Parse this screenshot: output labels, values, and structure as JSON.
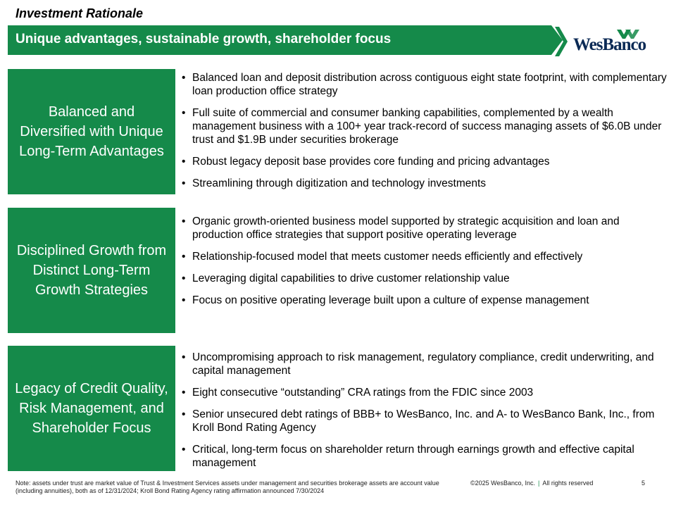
{
  "header": {
    "section": "Investment Rationale",
    "title": "Unique advantages, sustainable growth, shareholder focus",
    "logo_text": "WesBanco"
  },
  "colors": {
    "brand_green": "#158a4a",
    "logo_navy": "#0b2a55"
  },
  "pillars": [
    {
      "label": "Balanced and Diversified with Unique Long-Term Advantages",
      "bullets": [
        "Balanced loan and deposit distribution across contiguous eight state footprint, with complementary loan production office strategy",
        "Full suite of commercial and consumer banking capabilities, complemented by a wealth management business with a 100+ year track-record of success managing assets of $6.0B under trust and $1.9B under securities brokerage",
        "Robust legacy deposit base provides core funding and pricing advantages",
        "Streamlining through digitization and technology investments"
      ]
    },
    {
      "label": "Disciplined Growth from Distinct Long-Term Growth Strategies",
      "bullets": [
        "Organic growth-oriented business model supported by strategic acquisition and loan and production office strategies that support positive operating leverage",
        "Relationship-focused model that meets customer needs efficiently and effectively",
        "Leveraging digital capabilities to drive customer relationship value",
        "Focus on positive operating leverage built upon a culture of expense management"
      ]
    },
    {
      "label": "Legacy of Credit Quality, Risk Management, and Shareholder Focus",
      "bullets": [
        "Uncompromising approach to risk management, regulatory compliance, credit underwriting, and capital management",
        "Eight consecutive “outstanding” CRA ratings from the FDIC since 2003",
        "Senior unsecured debt ratings of BBB+ to WesBanco, Inc. and A- to WesBanco Bank, Inc., from Kroll Bond Rating Agency",
        "Critical, long-term focus on shareholder return through earnings growth and effective capital management"
      ]
    }
  ],
  "footer": {
    "note": "Note: assets under trust are market value of Trust & Investment Services assets under management and securities brokerage assets are account value (including annuities), both as of 12/31/2024; Kroll Bond Rating Agency rating affirmation announced 7/30/2024",
    "copyright": "©2025 WesBanco, Inc.",
    "separator": "|",
    "rights": "All rights reserved",
    "page": "5"
  }
}
